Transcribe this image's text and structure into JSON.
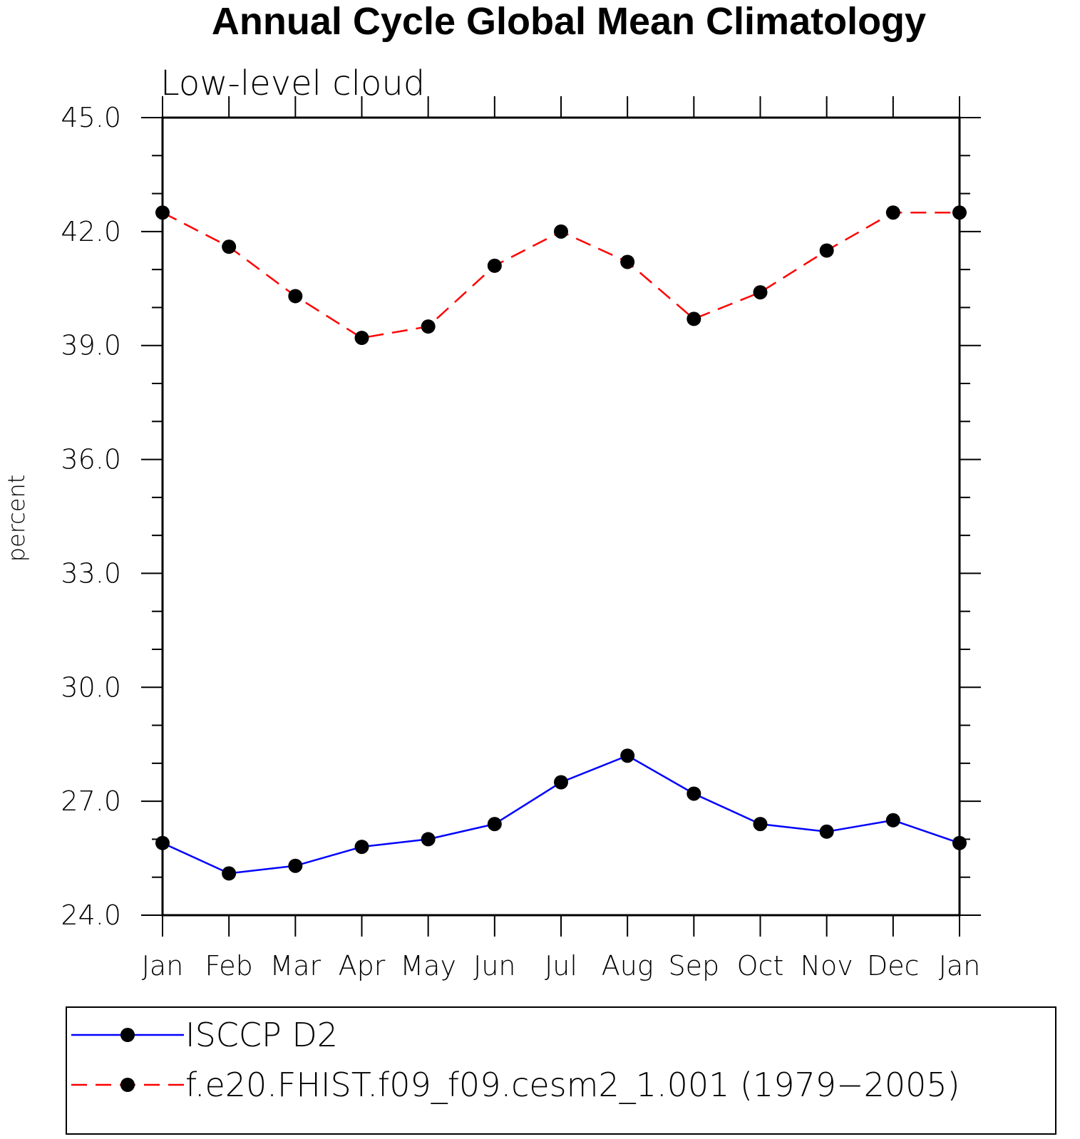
{
  "chart_data": {
    "type": "line",
    "title": "Annual Cycle Global Mean Climatology",
    "subtitle": "Low-level cloud",
    "ylabel": "percent",
    "xlabel": "",
    "categories": [
      "Jan",
      "Feb",
      "Mar",
      "Apr",
      "May",
      "Jun",
      "Jul",
      "Aug",
      "Sep",
      "Oct",
      "Nov",
      "Dec",
      "Jan"
    ],
    "ylim": [
      24.0,
      45.0
    ],
    "yticks": [
      "24.0",
      "27.0",
      "30.0",
      "33.0",
      "36.0",
      "39.0",
      "42.0",
      "45.0"
    ],
    "grid": false,
    "legend_position": "bottom",
    "series": [
      {
        "name": "ISCCP D2",
        "color": "#0000ff",
        "dash": "solid",
        "marker": "filled-circle",
        "values": [
          25.9,
          25.1,
          25.3,
          25.8,
          26.0,
          26.4,
          27.5,
          28.2,
          27.2,
          26.4,
          26.2,
          26.5,
          25.9
        ]
      },
      {
        "name": "f.e20.FHIST.f09_f09.cesm2_1.001 (1979−2005)",
        "color": "#ff0000",
        "dash": "dashed",
        "marker": "filled-circle",
        "values": [
          42.5,
          41.6,
          40.3,
          39.2,
          39.5,
          41.1,
          42.0,
          41.2,
          39.7,
          40.4,
          41.5,
          42.5,
          42.5
        ]
      }
    ]
  }
}
